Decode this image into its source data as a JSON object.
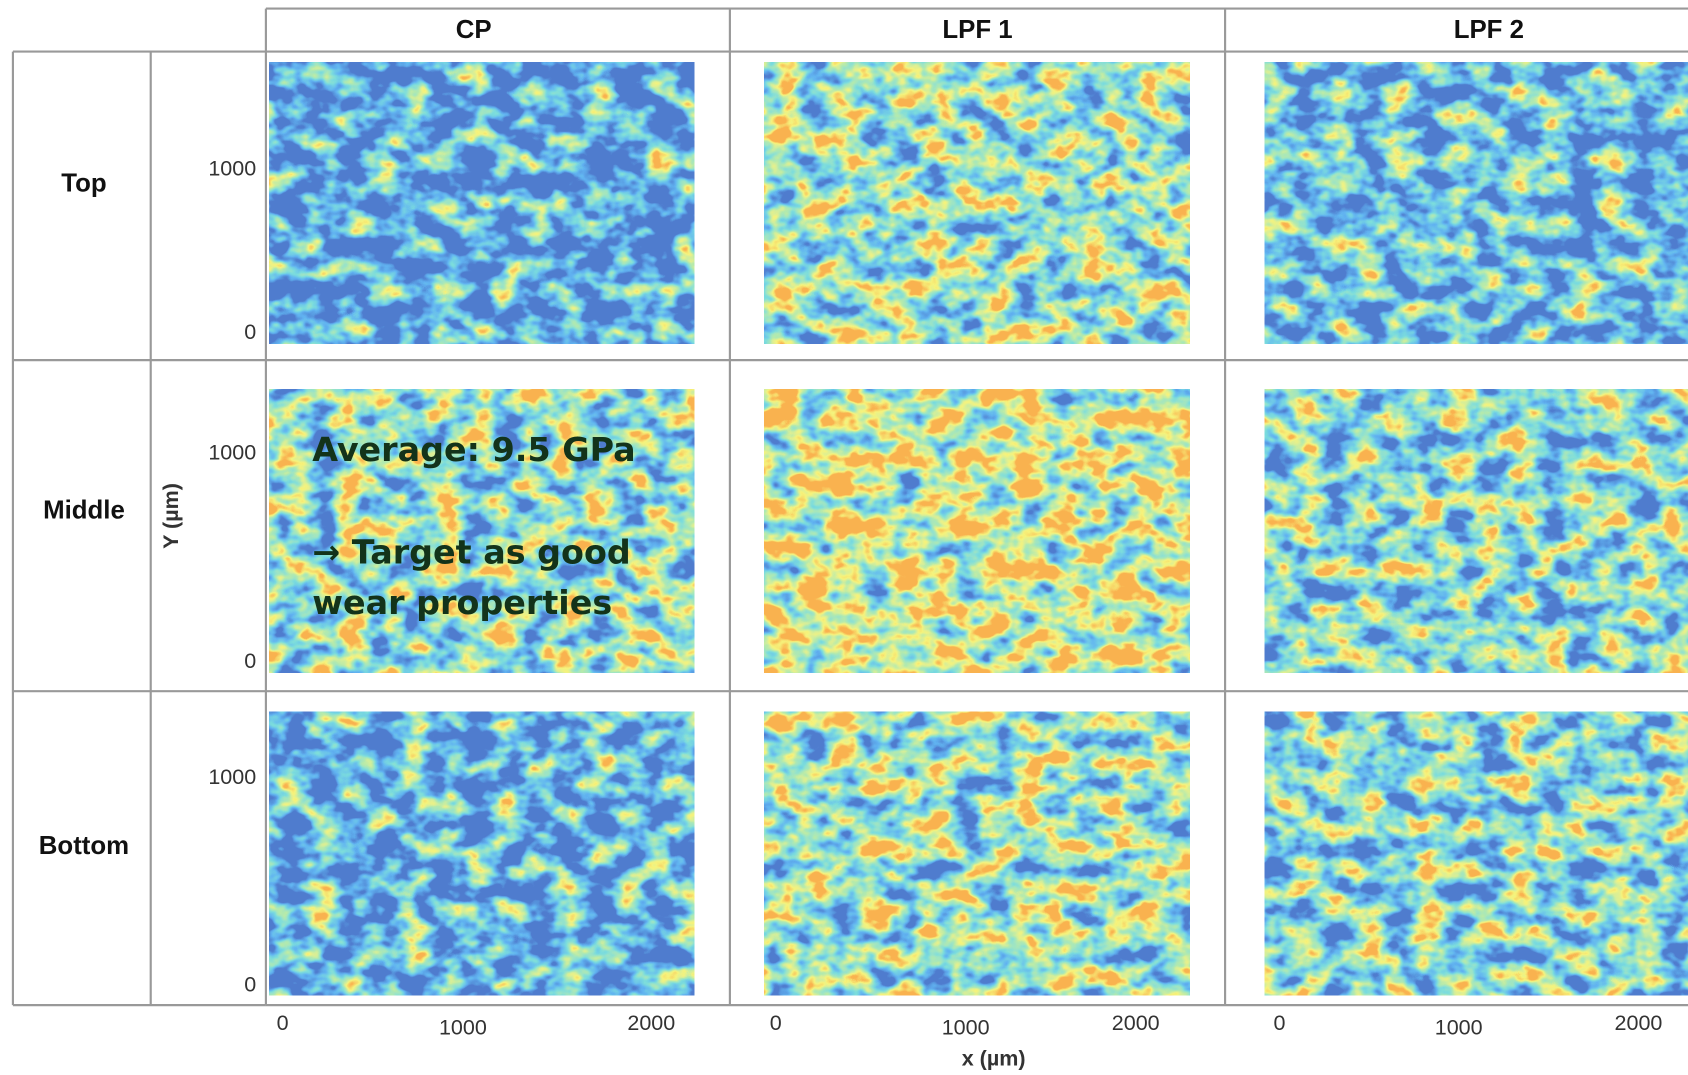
{
  "columns": [
    "CP",
    "LPF 1",
    "LPF 2"
  ],
  "rows": [
    "Top",
    "Middle",
    "Bottom"
  ],
  "y_ticks": [
    "1000",
    "0"
  ],
  "x_ticks": [
    "0",
    "1000",
    "2000"
  ],
  "y_axis_label": "Y (µm)",
  "x_axis_label": "x (µm)",
  "annotation": [
    "Average: 9.5 GPa",
    "→ Target as good",
    "wear properties"
  ]
}
